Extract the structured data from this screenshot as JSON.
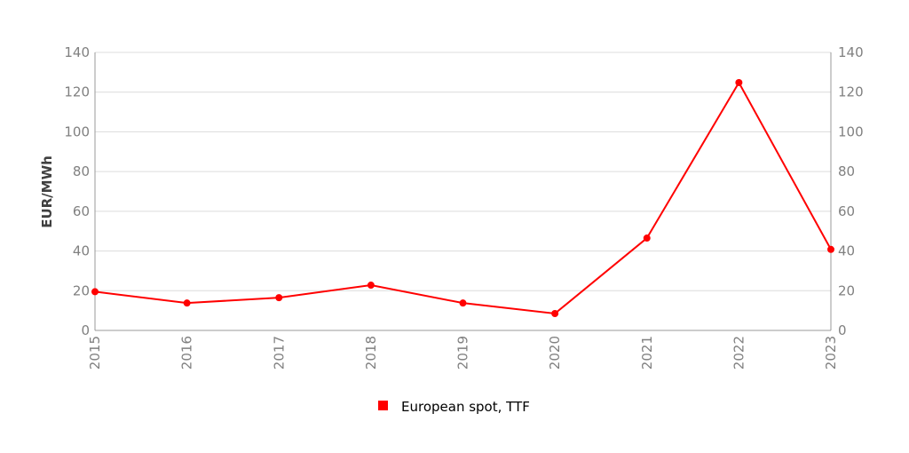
{
  "chart_data": {
    "type": "line",
    "title": "",
    "xlabel": "",
    "ylabel": "EUR/MWh",
    "ylim": [
      0,
      140
    ],
    "yticks": [
      0,
      20,
      40,
      60,
      80,
      100,
      120,
      140
    ],
    "grid": true,
    "legend_position": "bottom-center",
    "categories": [
      "2015",
      "2016",
      "2017",
      "2018",
      "2019",
      "2020",
      "2021",
      "2022",
      "2023"
    ],
    "series": [
      {
        "name": "European spot, TTF",
        "color": "#ff0000",
        "values": [
          19.5,
          13.8,
          16.5,
          22.8,
          13.8,
          8.5,
          46.5,
          124.8,
          40.8
        ]
      }
    ]
  }
}
